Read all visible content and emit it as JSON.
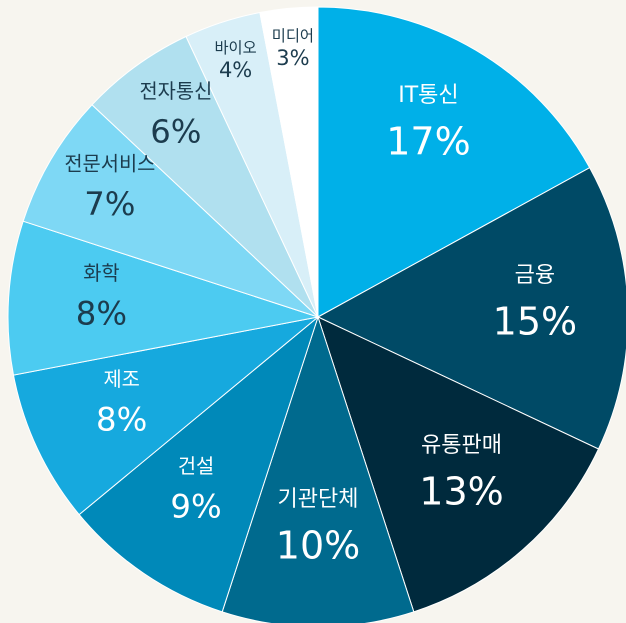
{
  "chart_data": {
    "type": "pie",
    "categories": [
      "IT통신",
      "금융",
      "유통판매",
      "기관단체",
      "건설",
      "제조",
      "화학",
      "전문서비스",
      "전자통신",
      "바이오",
      "미디어"
    ],
    "values": [
      17,
      15,
      13,
      10,
      9,
      8,
      8,
      7,
      6,
      4,
      3
    ],
    "value_labels": [
      "17%",
      "15%",
      "13%",
      "10%",
      "9%",
      "8%",
      "8%",
      "7%",
      "6%",
      "4%",
      "3%"
    ],
    "colors": [
      "#00b0e8",
      "#004a66",
      "#002a3d",
      "#006a8e",
      "#0089b9",
      "#16a9de",
      "#4ccbf1",
      "#7ed8f5",
      "#b0e0ef",
      "#d8eff8",
      "#ffffff"
    ]
  }
}
